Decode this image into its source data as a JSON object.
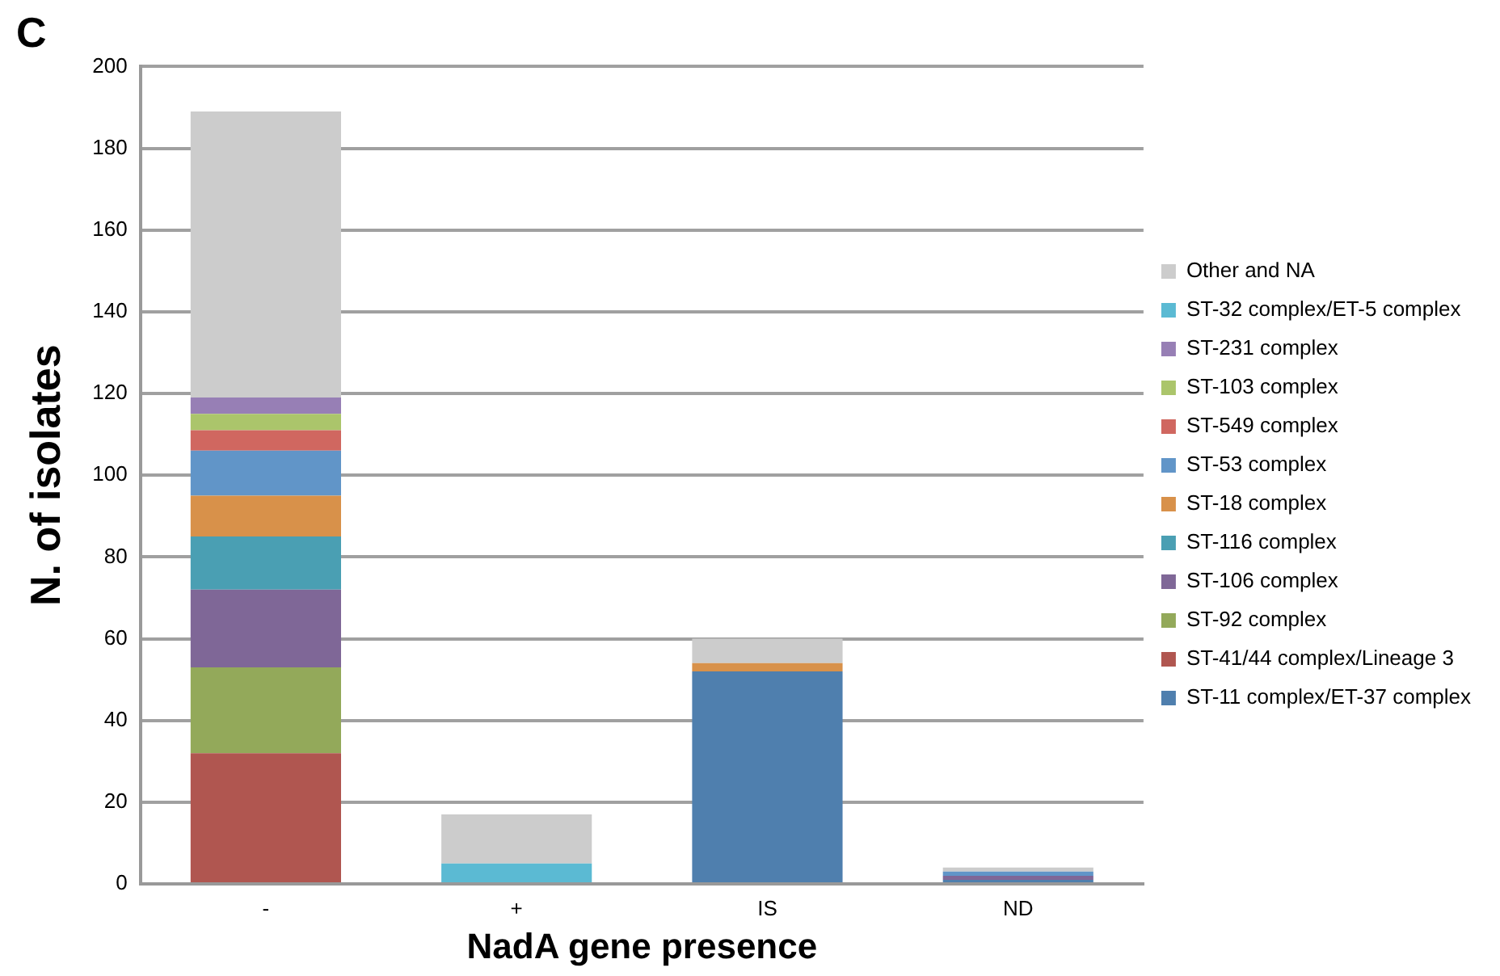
{
  "chart_data": {
    "type": "bar",
    "title": "C",
    "xlabel": "NadA gene presence",
    "ylabel": "N. of isolates",
    "categories": [
      "-",
      "+",
      "IS",
      "ND"
    ],
    "stacked": true,
    "legend": "right",
    "grid": "y",
    "ylim": [
      0,
      200
    ],
    "yticks": [
      0,
      20,
      40,
      60,
      80,
      100,
      120,
      140,
      160,
      180,
      200
    ],
    "series": [
      {
        "name": "ST-11 complex/ET-37 complex",
        "color": "#4f7fae",
        "values": [
          0,
          0,
          52,
          1
        ]
      },
      {
        "name": "ST-41/44 complex/Lineage 3",
        "color": "#b05650",
        "values": [
          32,
          0,
          0,
          0
        ]
      },
      {
        "name": "ST-92 complex",
        "color": "#93a95a",
        "values": [
          21,
          0,
          0,
          0
        ]
      },
      {
        "name": "ST-106 complex",
        "color": "#7f6797",
        "values": [
          19,
          0,
          0,
          1
        ]
      },
      {
        "name": "ST-116 complex",
        "color": "#4a9fb3",
        "values": [
          13,
          0,
          0,
          0
        ]
      },
      {
        "name": "ST-18 complex",
        "color": "#d8914a",
        "values": [
          10,
          0,
          2,
          0
        ]
      },
      {
        "name": "ST-53 complex",
        "color": "#6195c8",
        "values": [
          11,
          0,
          0,
          1
        ]
      },
      {
        "name": "ST-549 complex",
        "color": "#d06760",
        "values": [
          5,
          0,
          0,
          0
        ]
      },
      {
        "name": "ST-103 complex",
        "color": "#abc56b",
        "values": [
          4,
          0,
          0,
          0
        ]
      },
      {
        "name": "ST-231 complex",
        "color": "#977fb5",
        "values": [
          4,
          0,
          0,
          0
        ]
      },
      {
        "name": "ST-32 complex/ET-5 complex",
        "color": "#5bbad3",
        "values": [
          0,
          5,
          0,
          0
        ]
      },
      {
        "name": "Other and NA",
        "color": "#cccccc",
        "values": [
          70,
          12,
          6,
          1
        ]
      }
    ]
  }
}
